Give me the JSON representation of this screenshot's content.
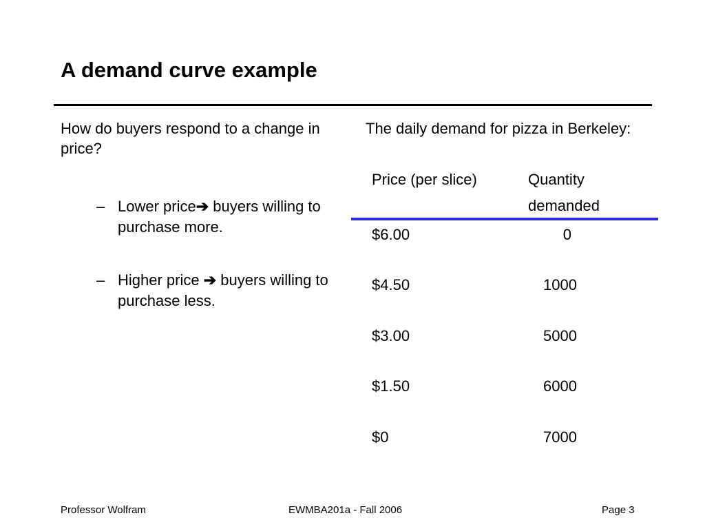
{
  "slide": {
    "title": "A demand curve example",
    "left": {
      "intro": "How do buyers respond to a change in price?",
      "bullets": [
        {
          "marker": "–",
          "before": "Lower price",
          "arrow": "➔",
          "after": " buyers willing to purchase more."
        },
        {
          "marker": "–",
          "before": "Higher price ",
          "arrow": "➔",
          "after": " buyers willing to purchase less."
        }
      ]
    },
    "right": {
      "intro": "The daily demand for pizza in Berkeley:",
      "table": {
        "headers": {
          "price": "Price (per slice)",
          "quantity_line1": "Quantity",
          "quantity_line2": "demanded"
        },
        "rows": [
          {
            "price": "$6.00",
            "quantity": "0"
          },
          {
            "price": "$4.50",
            "quantity": "1000"
          },
          {
            "price": "$3.00",
            "quantity": "5000"
          },
          {
            "price": "$1.50",
            "quantity": "6000"
          },
          {
            "price": "$0",
            "quantity": "7000"
          }
        ],
        "rule_color": "#2a2ed0"
      }
    },
    "footer": {
      "left": "Professor Wolfram",
      "center": "EWMBA201a - Fall 2006",
      "right": "Page 3"
    }
  }
}
